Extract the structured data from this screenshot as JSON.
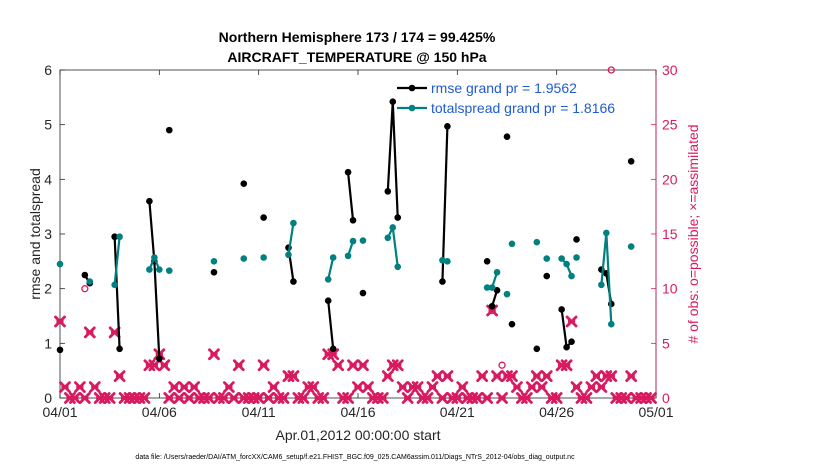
{
  "chart_data": {
    "type": "line",
    "title_line1": "Northern Hemisphere 173 / 174 = 99.425%",
    "title_line2": "AIRCRAFT_TEMPERATURE @ 150 hPa",
    "xlabel": "Apr.01,2012 00:00:00 start",
    "ylabel_left": "rmse and totalspread",
    "ylabel_right": "# of obs: o=possible; ×=assimilated",
    "footer": "data file: /Users/raeder/DAI/ATM_forcXX/CAM6_setup/f.e21.FHIST_BGC.f09_025.CAM6assim.011/Diags_NTrS_2012-04/obs_diag_output.nc",
    "xlim": [
      0,
      30
    ],
    "ylim_left": [
      0,
      6
    ],
    "ylim_right": [
      0,
      30
    ],
    "x_ticks": [
      {
        "v": 0,
        "label": "04/01"
      },
      {
        "v": 5,
        "label": "04/06"
      },
      {
        "v": 10,
        "label": "04/11"
      },
      {
        "v": 15,
        "label": "04/16"
      },
      {
        "v": 20,
        "label": "04/21"
      },
      {
        "v": 25,
        "label": "04/26"
      },
      {
        "v": 30,
        "label": "05/01"
      }
    ],
    "y_ticks_left": [
      0,
      1,
      2,
      3,
      4,
      5,
      6
    ],
    "y_ticks_right": [
      0,
      5,
      10,
      15,
      20,
      25,
      30
    ],
    "grid": false,
    "legend_position": "top-right",
    "colors": {
      "rmse": "#000000",
      "spread": "#008080",
      "obs": "#d81b60",
      "right_axis": "#d81b60",
      "legend_text": "#1f5bd1"
    },
    "series": [
      {
        "name": "rmse grand pr = 1.9562",
        "segments": [
          [
            [
              0.0,
              0.88
            ]
          ],
          [
            [
              1.25,
              2.25
            ],
            [
              1.5,
              2.1
            ]
          ],
          [
            [
              2.75,
              2.95
            ],
            [
              3.0,
              0.9
            ]
          ],
          [
            [
              4.5,
              3.6
            ],
            [
              4.75,
              2.5
            ],
            [
              5.0,
              0.72
            ]
          ],
          [
            [
              5.5,
              4.9
            ]
          ],
          [
            [
              7.75,
              2.3
            ]
          ],
          [
            [
              9.25,
              3.92
            ]
          ],
          [
            [
              10.25,
              3.3
            ]
          ],
          [
            [
              11.5,
              2.75
            ],
            [
              11.75,
              2.13
            ]
          ],
          [
            [
              13.5,
              1.78
            ],
            [
              13.75,
              0.9
            ]
          ],
          [
            [
              14.5,
              4.13
            ],
            [
              14.75,
              3.25
            ]
          ],
          [
            [
              15.25,
              1.92
            ]
          ],
          [
            [
              16.5,
              3.78
            ],
            [
              16.75,
              5.42
            ],
            [
              17.0,
              3.3
            ]
          ],
          [
            [
              19.25,
              2.13
            ],
            [
              19.5,
              4.97
            ]
          ],
          [
            [
              21.5,
              2.5
            ]
          ],
          [
            [
              21.75,
              1.68
            ],
            [
              22.0,
              1.97
            ]
          ],
          [
            [
              22.5,
              4.78
            ]
          ],
          [
            [
              22.75,
              1.35
            ]
          ],
          [
            [
              24.0,
              0.9
            ]
          ],
          [
            [
              24.5,
              2.23
            ]
          ],
          [
            [
              25.25,
              1.62
            ],
            [
              25.5,
              0.93
            ],
            [
              25.75,
              1.03
            ]
          ],
          [
            [
              26.0,
              2.9
            ]
          ],
          [
            [
              27.25,
              2.35
            ],
            [
              27.5,
              2.28
            ],
            [
              27.75,
              1.72
            ]
          ],
          [
            [
              28.75,
              4.33
            ]
          ]
        ]
      },
      {
        "name": "totalspread grand pr = 1.8166",
        "segments": [
          [
            [
              0.0,
              2.45
            ]
          ],
          [
            [
              1.5,
              2.13
            ]
          ],
          [
            [
              2.75,
              2.07
            ],
            [
              3.0,
              2.95
            ]
          ],
          [
            [
              4.5,
              2.35
            ],
            [
              4.75,
              2.57
            ],
            [
              5.0,
              2.35
            ]
          ],
          [
            [
              5.5,
              2.33
            ]
          ],
          [
            [
              7.75,
              2.5
            ]
          ],
          [
            [
              9.25,
              2.55
            ]
          ],
          [
            [
              10.25,
              2.57
            ]
          ],
          [
            [
              11.5,
              2.62
            ],
            [
              11.75,
              3.2
            ]
          ],
          [
            [
              13.5,
              2.17
            ],
            [
              13.75,
              2.57
            ]
          ],
          [
            [
              14.5,
              2.6
            ],
            [
              14.75,
              2.87
            ]
          ],
          [
            [
              15.25,
              2.88
            ]
          ],
          [
            [
              16.5,
              2.93
            ],
            [
              16.75,
              3.12
            ],
            [
              17.0,
              2.4
            ]
          ],
          [
            [
              19.25,
              2.52
            ],
            [
              19.5,
              2.5
            ]
          ],
          [
            [
              21.5,
              2.02
            ]
          ],
          [
            [
              21.75,
              2.02
            ],
            [
              22.0,
              2.3
            ]
          ],
          [
            [
              22.5,
              1.9
            ]
          ],
          [
            [
              22.75,
              2.82
            ]
          ],
          [
            [
              24.0,
              2.85
            ]
          ],
          [
            [
              24.5,
              2.55
            ]
          ],
          [
            [
              25.25,
              2.55
            ],
            [
              25.5,
              2.45
            ],
            [
              25.75,
              2.23
            ]
          ],
          [
            [
              26.0,
              2.57
            ]
          ],
          [
            [
              27.25,
              2.07
            ],
            [
              27.5,
              3.02
            ],
            [
              27.75,
              1.35
            ]
          ],
          [
            [
              28.75,
              2.77
            ]
          ]
        ]
      }
    ],
    "obs_assimilated": [
      [
        0.0,
        7
      ],
      [
        0.25,
        1
      ],
      [
        0.5,
        0
      ],
      [
        0.75,
        0
      ],
      [
        1.0,
        1
      ],
      [
        1.25,
        0
      ],
      [
        1.5,
        6
      ],
      [
        1.75,
        1
      ],
      [
        2.0,
        0
      ],
      [
        2.25,
        0
      ],
      [
        2.5,
        0
      ],
      [
        2.75,
        6
      ],
      [
        3.0,
        2
      ],
      [
        3.25,
        0
      ],
      [
        3.5,
        0
      ],
      [
        3.75,
        0
      ],
      [
        4.0,
        0
      ],
      [
        4.25,
        0
      ],
      [
        4.5,
        3
      ],
      [
        4.75,
        3
      ],
      [
        5.0,
        4
      ],
      [
        5.25,
        3
      ],
      [
        5.5,
        0
      ],
      [
        5.75,
        1
      ],
      [
        6.0,
        0
      ],
      [
        6.25,
        1
      ],
      [
        6.5,
        0
      ],
      [
        6.75,
        1
      ],
      [
        7.0,
        0
      ],
      [
        7.25,
        0
      ],
      [
        7.5,
        0
      ],
      [
        7.75,
        4
      ],
      [
        8.0,
        0
      ],
      [
        8.25,
        0
      ],
      [
        8.5,
        1
      ],
      [
        8.75,
        0
      ],
      [
        9.0,
        3
      ],
      [
        9.25,
        0
      ],
      [
        9.5,
        0
      ],
      [
        9.75,
        0
      ],
      [
        10.0,
        0
      ],
      [
        10.25,
        3
      ],
      [
        10.5,
        0
      ],
      [
        10.75,
        1
      ],
      [
        11.0,
        0
      ],
      [
        11.25,
        0
      ],
      [
        11.5,
        2
      ],
      [
        11.75,
        2
      ],
      [
        12.0,
        0
      ],
      [
        12.25,
        0
      ],
      [
        12.5,
        1
      ],
      [
        12.75,
        1
      ],
      [
        13.0,
        0
      ],
      [
        13.25,
        0
      ],
      [
        13.5,
        4
      ],
      [
        13.75,
        4
      ],
      [
        14.0,
        3
      ],
      [
        14.25,
        0
      ],
      [
        14.5,
        0
      ],
      [
        14.75,
        3
      ],
      [
        15.0,
        1
      ],
      [
        15.25,
        3
      ],
      [
        15.5,
        1
      ],
      [
        15.75,
        0
      ],
      [
        16.0,
        0
      ],
      [
        16.25,
        0
      ],
      [
        16.5,
        2
      ],
      [
        16.75,
        3
      ],
      [
        17.0,
        3
      ],
      [
        17.25,
        1
      ],
      [
        17.5,
        0
      ],
      [
        17.75,
        1
      ],
      [
        18.0,
        1
      ],
      [
        18.25,
        0
      ],
      [
        18.5,
        0
      ],
      [
        18.75,
        1
      ],
      [
        19.0,
        2
      ],
      [
        19.25,
        0
      ],
      [
        19.5,
        2
      ],
      [
        19.75,
        0
      ],
      [
        20.0,
        0
      ],
      [
        20.25,
        1
      ],
      [
        20.5,
        0
      ],
      [
        20.75,
        0
      ],
      [
        21.0,
        0
      ],
      [
        21.25,
        2
      ],
      [
        21.5,
        0
      ],
      [
        21.75,
        8
      ],
      [
        22.0,
        2
      ],
      [
        22.25,
        0
      ],
      [
        22.5,
        2
      ],
      [
        22.75,
        2
      ],
      [
        23.0,
        1
      ],
      [
        23.25,
        0
      ],
      [
        23.5,
        0
      ],
      [
        23.75,
        1
      ],
      [
        24.0,
        2
      ],
      [
        24.25,
        1
      ],
      [
        24.5,
        2
      ],
      [
        24.75,
        0
      ],
      [
        25.0,
        0
      ],
      [
        25.25,
        3
      ],
      [
        25.5,
        3
      ],
      [
        25.75,
        7
      ],
      [
        26.0,
        1
      ],
      [
        26.25,
        0
      ],
      [
        26.5,
        0
      ],
      [
        26.75,
        1
      ],
      [
        27.0,
        2
      ],
      [
        27.25,
        1
      ],
      [
        27.5,
        2
      ],
      [
        27.75,
        2
      ],
      [
        28.0,
        0
      ],
      [
        28.25,
        0
      ],
      [
        28.5,
        0
      ],
      [
        28.75,
        2
      ],
      [
        29.0,
        0
      ],
      [
        29.25,
        0
      ],
      [
        29.5,
        0
      ],
      [
        29.75,
        0
      ]
    ],
    "obs_possible": [
      [
        1.25,
        10
      ],
      [
        21.75,
        8
      ],
      [
        22.25,
        3
      ],
      [
        27.75,
        30
      ]
    ]
  }
}
